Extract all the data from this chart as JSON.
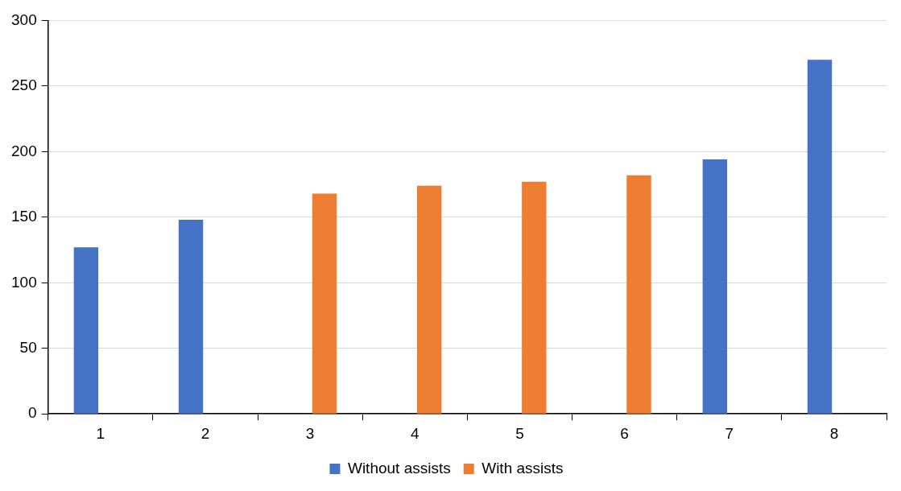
{
  "chart_data": {
    "type": "bar",
    "categories": [
      "1",
      "2",
      "3",
      "4",
      "5",
      "6",
      "7",
      "8"
    ],
    "series": [
      {
        "name": "Without assists",
        "color": "#4472c4",
        "values": [
          127,
          148,
          null,
          null,
          null,
          null,
          194,
          270
        ]
      },
      {
        "name": "With assists",
        "color": "#ed7d31",
        "values": [
          null,
          null,
          168,
          174,
          177,
          182,
          null,
          null
        ]
      }
    ],
    "ylim": [
      0,
      300
    ],
    "yticks": [
      0,
      50,
      100,
      150,
      200,
      250,
      300
    ],
    "grid": "y",
    "legend": "bottom"
  }
}
